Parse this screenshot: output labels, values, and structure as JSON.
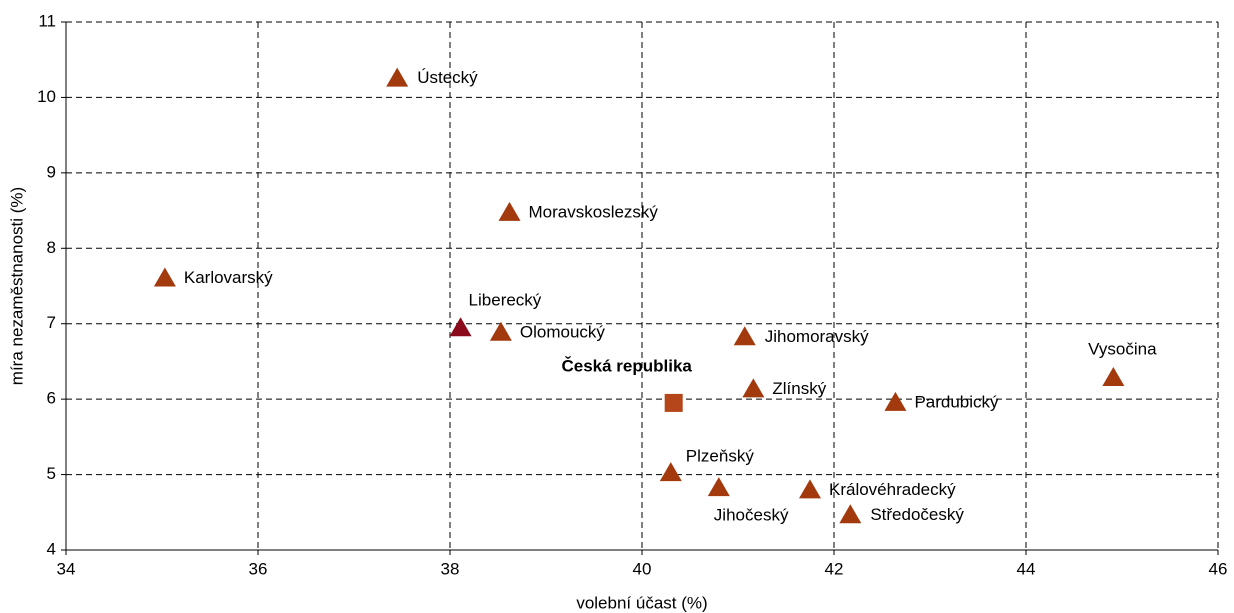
{
  "chart_data": {
    "type": "scatter",
    "xlabel": "volební účast (%)",
    "ylabel": "míra nezaměstnanosti (%)",
    "xlim": [
      34,
      46
    ],
    "ylim": [
      4,
      11
    ],
    "xticks": [
      34,
      36,
      38,
      40,
      42,
      44,
      46
    ],
    "yticks": [
      4,
      5,
      6,
      7,
      8,
      9,
      10,
      11
    ],
    "grid": true,
    "series": [
      {
        "labels": [
          "Ústecký",
          "Moravskoslezský",
          "Karlovarský",
          "Liberecký",
          "Olomoucký",
          "Jihomoravský",
          "Vysočina",
          "Česká republika",
          "Zlínský",
          "Pardubický",
          "Plzeňský",
          "Jihočeský",
          "Královéhradecký",
          "Středočeský"
        ],
        "x": [
          37.45,
          38.62,
          35.03,
          38.11,
          38.53,
          41.07,
          44.91,
          40.33,
          41.16,
          42.64,
          40.3,
          40.8,
          41.75,
          42.17
        ],
        "values": [
          10.25,
          8.47,
          7.6,
          6.94,
          6.88,
          6.82,
          6.28,
          5.95,
          6.13,
          5.95,
          5.02,
          4.82,
          4.79,
          4.46
        ],
        "markers": [
          "triangle",
          "triangle",
          "triangle",
          "triangle",
          "triangle",
          "triangle",
          "triangle",
          "square",
          "triangle",
          "triangle",
          "triangle",
          "triangle",
          "triangle",
          "triangle"
        ],
        "colors": [
          "#a33a0e",
          "#a33a0e",
          "#a33a0e",
          "#8b0b1c",
          "#a33a0e",
          "#a33a0e",
          "#a33a0e",
          "#b5461a",
          "#a33a0e",
          "#a33a0e",
          "#a33a0e",
          "#a33a0e",
          "#a33a0e",
          "#a33a0e"
        ]
      }
    ]
  }
}
